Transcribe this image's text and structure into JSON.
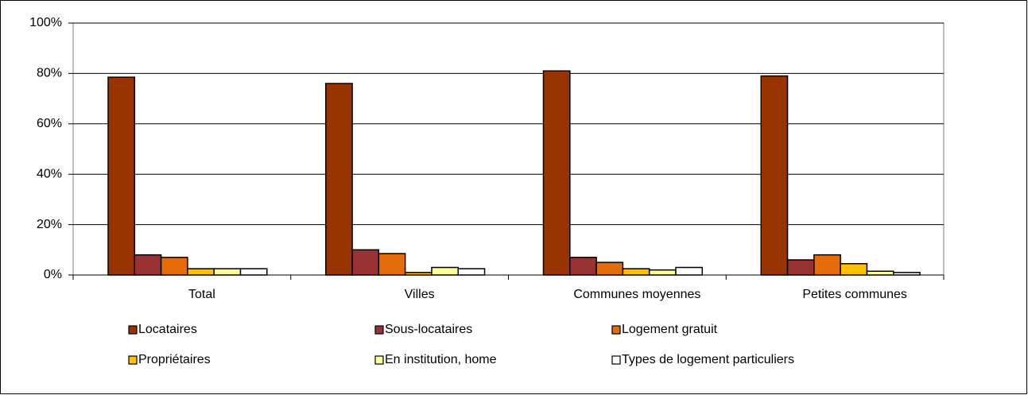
{
  "chart_data": {
    "type": "bar",
    "categories": [
      "Total",
      "Villes",
      "Communes moyennes",
      "Petites communes"
    ],
    "series": [
      {
        "name": "Locataires",
        "color": "#993300",
        "values": [
          78.5,
          76,
          81,
          79
        ]
      },
      {
        "name": "Sous-locataires",
        "color": "#993333",
        "values": [
          8,
          10,
          7,
          6
        ]
      },
      {
        "name": "Logement gratuit",
        "color": "#e46c0a",
        "values": [
          7,
          8.5,
          5,
          8
        ]
      },
      {
        "name": "Propriétaires",
        "color": "#ffc000",
        "values": [
          2.5,
          1,
          2.5,
          4.5
        ]
      },
      {
        "name": "En institution, home",
        "color": "#ffff99",
        "values": [
          2.5,
          3,
          2,
          1.5
        ]
      },
      {
        "name": "Types de logement particuliers",
        "color": "#ffffff",
        "values": [
          2.5,
          2.5,
          3,
          1
        ]
      }
    ],
    "ylim": [
      0,
      100
    ],
    "yticks": [
      {
        "value": 0,
        "label": "0%"
      },
      {
        "value": 20,
        "label": "20%"
      },
      {
        "value": 40,
        "label": "40%"
      },
      {
        "value": 60,
        "label": "60%"
      },
      {
        "value": 80,
        "label": "80%"
      },
      {
        "value": 100,
        "label": "100%"
      }
    ],
    "grid": true,
    "legend": "bottom"
  }
}
